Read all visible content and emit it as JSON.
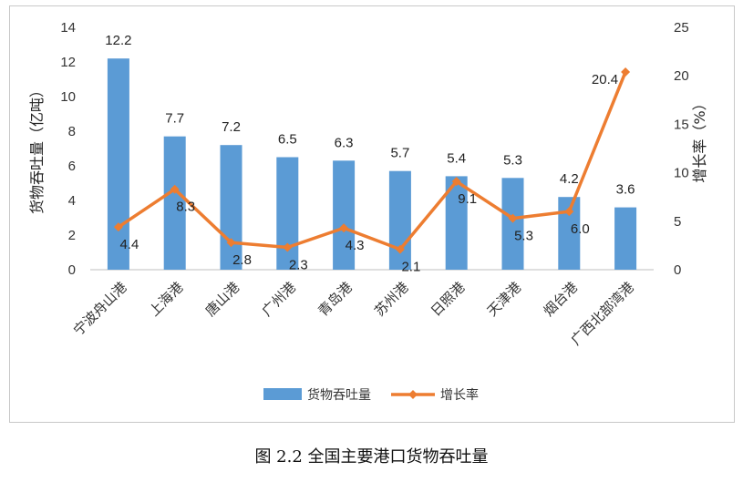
{
  "caption": "图 2.2  全国主要港口货物吞吐量",
  "chart_data": {
    "type": "bar+line",
    "categories": [
      "宁波舟山港",
      "上海港",
      "唐山港",
      "广州港",
      "青岛港",
      "苏州港",
      "日照港",
      "天津港",
      "烟台港",
      "广西北部湾港"
    ],
    "series": [
      {
        "name": "货物吞吐量",
        "type": "bar",
        "axis": "left",
        "color": "#5b9bd5",
        "values": [
          12.2,
          7.7,
          7.2,
          6.5,
          6.3,
          5.7,
          5.4,
          5.3,
          4.2,
          3.6
        ],
        "labels": [
          "12.2",
          "7.7",
          "7.2",
          "6.5",
          "6.3",
          "5.7",
          "5.4",
          "5.3",
          "4.2",
          "3.6"
        ]
      },
      {
        "name": "增长率",
        "type": "line",
        "axis": "right",
        "color": "#ed7d31",
        "values": [
          4.4,
          8.3,
          2.8,
          2.3,
          4.3,
          2.1,
          9.1,
          5.3,
          6.0,
          20.4
        ],
        "labels": [
          "4.4",
          "8.3",
          "2.8",
          "2.3",
          "4.3",
          "2.1",
          "9.1",
          "5.3",
          "6.0",
          "20.4"
        ]
      }
    ],
    "y_left": {
      "label": "货物吞吐量（亿吨）",
      "ylim": [
        0,
        14
      ],
      "ticks": [
        "0",
        "2",
        "4",
        "6",
        "8",
        "10",
        "12",
        "14"
      ]
    },
    "y_right": {
      "label": "增长率（%）",
      "ylim": [
        0,
        25
      ],
      "ticks": [
        "0",
        "5",
        "10",
        "15",
        "20",
        "25"
      ]
    },
    "grid": false,
    "legend": "bottom-center"
  }
}
